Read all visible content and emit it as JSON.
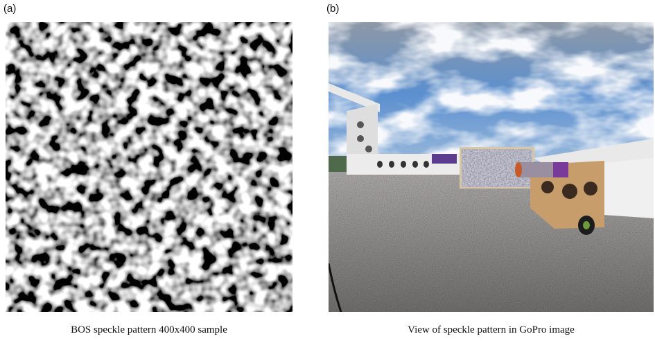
{
  "panels": [
    {
      "label": "(a)",
      "caption": "BOS speckle pattern 400x400 sample"
    },
    {
      "label": "(b)",
      "caption": "View of speckle pattern in GoPro image"
    }
  ]
}
